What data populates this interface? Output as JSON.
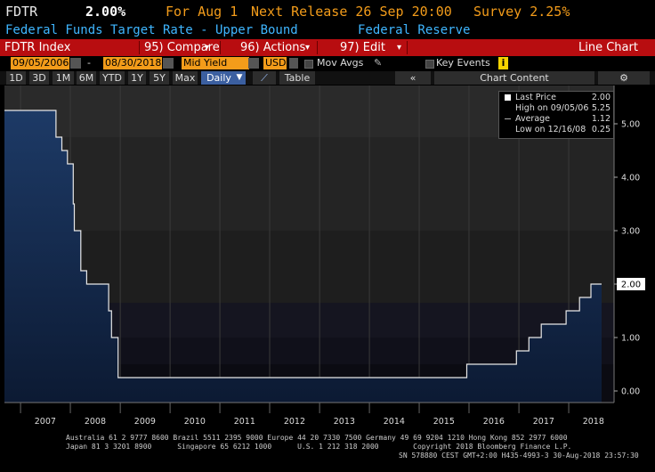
{
  "header": {
    "ticker": "FDTR",
    "last": "2.00%",
    "for_date": "For Aug 1",
    "next_release": "Next Release 26 Sep 20:00",
    "survey": "Survey 2.25%",
    "description": "Federal Funds Target Rate - Upper Bound",
    "source": "Federal Reserve"
  },
  "toolbar": {
    "security": "FDTR Index",
    "compare": "95) Compare",
    "actions": "96) Actions",
    "edit": "97) Edit",
    "chart_type": "Line Chart"
  },
  "controls": {
    "start_date": "09/05/2006",
    "end_date": "08/30/2018",
    "field": "Mid Yield",
    "currency": "USD",
    "mov_avgs": "Mov Avgs",
    "key_events": "Key Events",
    "key_events_badge": "i"
  },
  "periods": {
    "items": [
      "1D",
      "3D",
      "1M",
      "6M",
      "YTD",
      "1Y",
      "5Y",
      "Max"
    ],
    "frequency": "Daily",
    "table": "Table",
    "collapse": "«",
    "chart_content": "Chart Content",
    "settings_icon": "⚙"
  },
  "legend": {
    "rows": [
      {
        "label": "Last Price",
        "value": "2.00"
      },
      {
        "label": "High on 09/05/06",
        "value": "5.25"
      },
      {
        "label": "Average",
        "value": "1.12"
      },
      {
        "label": "Low on 12/16/08",
        "value": "0.25"
      }
    ]
  },
  "chart_data": {
    "type": "area",
    "x_ticks": [
      "2007",
      "2008",
      "2009",
      "2010",
      "2011",
      "2012",
      "2013",
      "2014",
      "2015",
      "2016",
      "2017",
      "2018"
    ],
    "y_ticks": [
      "5.00",
      "4.00",
      "3.00",
      "2.00",
      "1.00",
      "0.00"
    ],
    "ylim": [
      -0.25,
      5.5
    ],
    "last_label": "2.00",
    "series": [
      {
        "points": [
          [
            "2006-09-05",
            5.25
          ],
          [
            "2007-09-18",
            4.75
          ],
          [
            "2007-10-31",
            4.5
          ],
          [
            "2007-12-11",
            4.25
          ],
          [
            "2008-01-22",
            3.5
          ],
          [
            "2008-01-30",
            3.0
          ],
          [
            "2008-03-18",
            2.25
          ],
          [
            "2008-04-30",
            2.0
          ],
          [
            "2008-10-08",
            1.5
          ],
          [
            "2008-10-29",
            1.0
          ],
          [
            "2008-12-16",
            0.25
          ],
          [
            "2015-12-16",
            0.5
          ],
          [
            "2016-12-14",
            0.75
          ],
          [
            "2017-03-15",
            1.0
          ],
          [
            "2017-06-14",
            1.25
          ],
          [
            "2017-12-13",
            1.5
          ],
          [
            "2018-03-21",
            1.75
          ],
          [
            "2018-06-13",
            2.0
          ],
          [
            "2018-08-30",
            2.0
          ]
        ]
      }
    ]
  },
  "footer": {
    "line1": "Australia 61 2 9777 8600 Brazil 5511 2395 9000 Europe 44 20 7330 7500 Germany 49 69 9204 1210 Hong Kong 852 2977 6000",
    "line2": "Japan 81 3 3201 8900      Singapore 65 6212 1000      U.S. 1 212 318 2000        Copyright 2018 Bloomberg Finance L.P.",
    "line3": "SN 578880 CEST GMT+2:00 H435-4993-3 30-Aug-2018 23:57:30"
  },
  "colors": {
    "accent_orange": "#f39c1a",
    "header_blue": "#3fb6ff",
    "toolbar_red": "#b80d10"
  }
}
